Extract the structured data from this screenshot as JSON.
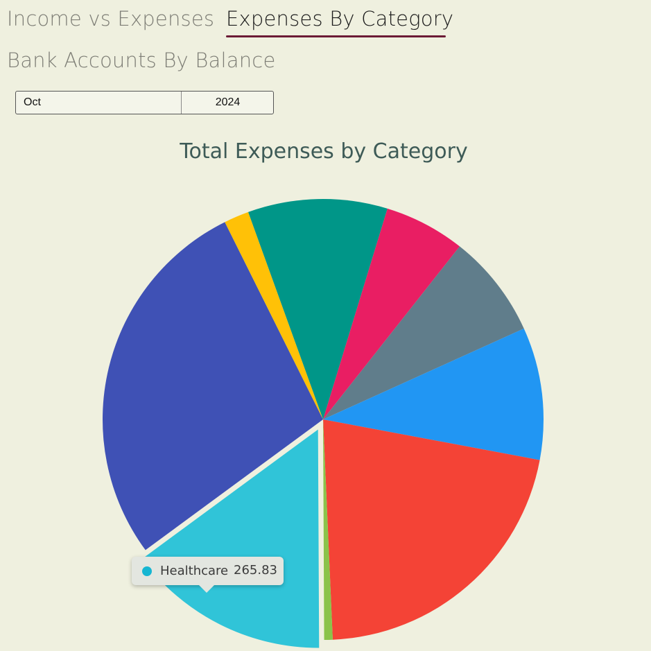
{
  "tabs": [
    {
      "label": "Income vs Expenses",
      "active": false
    },
    {
      "label": "Expenses By Category",
      "active": true
    },
    {
      "label": "Bank Accounts By Balance",
      "active": false
    }
  ],
  "period": {
    "month": "Oct",
    "year": "2024"
  },
  "chart_data": {
    "type": "pie",
    "title": "Total Expenses by Category",
    "slices": [
      {
        "value": 52.3,
        "color": "#2196f3"
      },
      {
        "value": 378.8,
        "color": "#f44336"
      },
      {
        "value": 11.0,
        "color": "#8bc34a"
      },
      {
        "name": "Healthcare",
        "value": 265.83,
        "color": "#30c4d8",
        "highlighted": true
      },
      {
        "value": 492.1,
        "color": "#3f51b5"
      },
      {
        "value": 32.6,
        "color": "#ffc107"
      },
      {
        "value": 181.5,
        "color": "#009688"
      },
      {
        "value": 105.0,
        "color": "#e91e63"
      },
      {
        "value": 134.8,
        "color": "#607d8b"
      },
      {
        "value": 120.0,
        "color": "#2196f3"
      }
    ]
  },
  "tooltip": {
    "label": "Healthcare",
    "value": "265.83",
    "dot_color": "#16b6d2"
  },
  "colors": {
    "background": "#eff0df",
    "title": "#3e5b57",
    "tab_underline": "#6b1a35"
  }
}
